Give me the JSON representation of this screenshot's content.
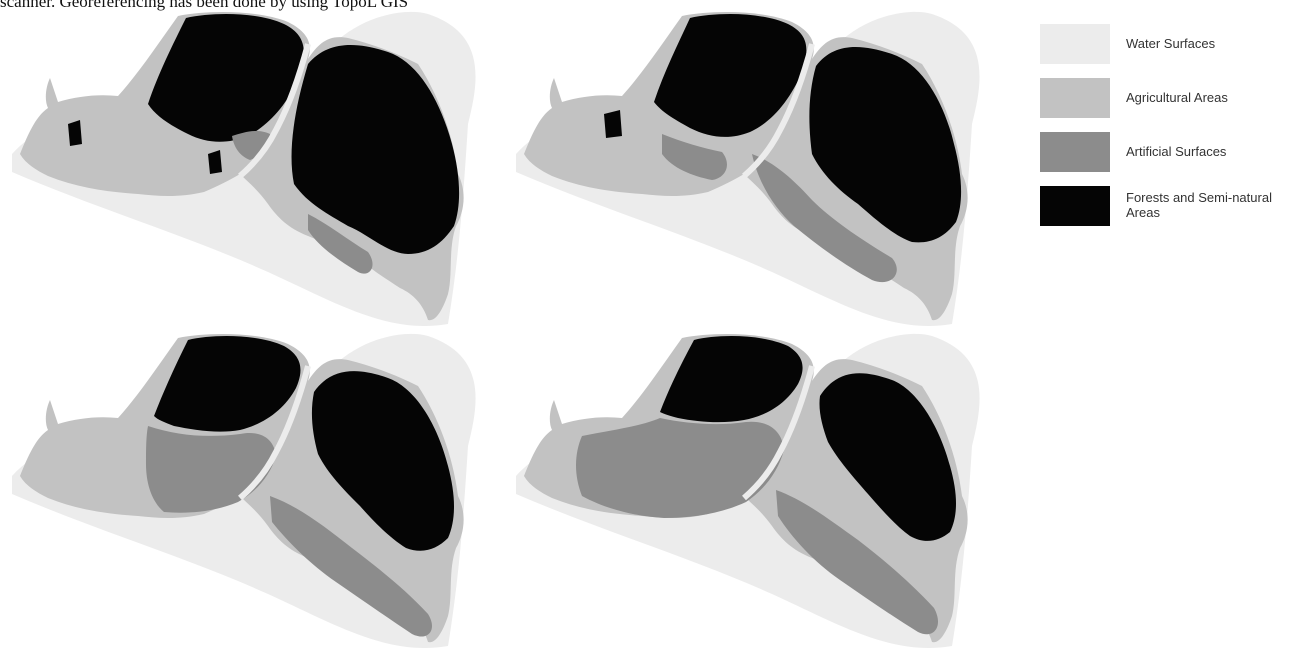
{
  "caption": {
    "fragment": "scanner. Georeferencing has been done by using TopoL GIS"
  },
  "colors": {
    "water": "#ececec",
    "agricultural": "#c2c2c2",
    "artificial": "#8c8c8c",
    "forest": "#050505"
  },
  "legend": {
    "items": [
      {
        "key": "water",
        "label": "Water Surfaces",
        "color": "#ececec"
      },
      {
        "key": "agricultural",
        "label": "Agricultural Areas",
        "color": "#c2c2c2"
      },
      {
        "key": "artificial",
        "label": "Artificial Surfaces",
        "color": "#8c8c8c"
      },
      {
        "key": "forest",
        "label": "Forests and Semi-natural Areas",
        "color": "#050505"
      }
    ]
  },
  "maps": [
    {
      "panel": 1,
      "artificial_share": 0.12,
      "agricultural_share": 0.34,
      "forest_share": 0.54
    },
    {
      "panel": 2,
      "artificial_share": 0.24,
      "agricultural_share": 0.26,
      "forest_share": 0.5
    },
    {
      "panel": 3,
      "artificial_share": 0.4,
      "agricultural_share": 0.2,
      "forest_share": 0.4
    },
    {
      "panel": 4,
      "artificial_share": 0.48,
      "agricultural_share": 0.14,
      "forest_share": 0.38
    }
  ]
}
